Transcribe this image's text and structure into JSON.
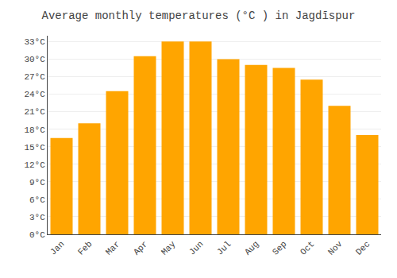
{
  "chart_data": {
    "type": "bar",
    "title": "Average monthly temperatures (°C ) in Jagdīspur",
    "categories": [
      "Jan",
      "Feb",
      "Mar",
      "Apr",
      "May",
      "Jun",
      "Jul",
      "Aug",
      "Sep",
      "Oct",
      "Nov",
      "Dec"
    ],
    "values": [
      16.5,
      19.0,
      24.5,
      30.5,
      33.0,
      33.0,
      30.0,
      29.0,
      28.5,
      26.5,
      22.0,
      17.0
    ],
    "color": "#FFA500",
    "ylim": [
      0,
      34
    ],
    "yticks": [
      {
        "value": 0,
        "label": "0°C"
      },
      {
        "value": 3,
        "label": "3°C"
      },
      {
        "value": 6,
        "label": "6°C"
      },
      {
        "value": 9,
        "label": "9°C"
      },
      {
        "value": 12,
        "label": "12°C"
      },
      {
        "value": 15,
        "label": "15°C"
      },
      {
        "value": 18,
        "label": "18°C"
      },
      {
        "value": 21,
        "label": "21°C"
      },
      {
        "value": 24,
        "label": "24°C"
      },
      {
        "value": 27,
        "label": "27°C"
      },
      {
        "value": 30,
        "label": "30°C"
      },
      {
        "value": 33,
        "label": "33°C"
      }
    ],
    "grid": true
  }
}
